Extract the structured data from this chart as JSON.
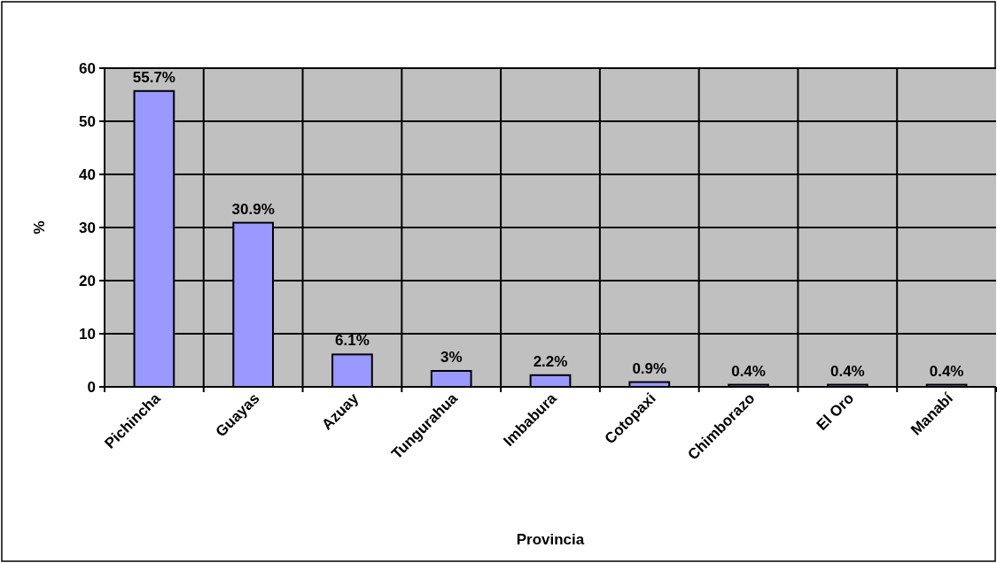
{
  "chart_data": {
    "type": "bar",
    "xlabel": "Provincia",
    "ylabel": "%",
    "categories": [
      "Pichincha",
      "Guayas",
      "Azuay",
      "Tungurahua",
      "Imbabura",
      "Cotopaxi",
      "Chimborazo",
      "El Oro",
      "Manabí"
    ],
    "values": [
      55.7,
      30.9,
      6.1,
      3,
      2.2,
      0.9,
      0.4,
      0.4,
      0.4
    ],
    "value_labels": [
      "55.7%",
      "30.9%",
      "6.1%",
      "3%",
      "2.2%",
      "0.9%",
      "0.4%",
      "0.4%",
      "0.4%"
    ],
    "color": "#9999ff",
    "ylim": [
      0,
      60
    ],
    "yticks": [
      0,
      10,
      20,
      30,
      40,
      50,
      60
    ],
    "grid": true
  }
}
